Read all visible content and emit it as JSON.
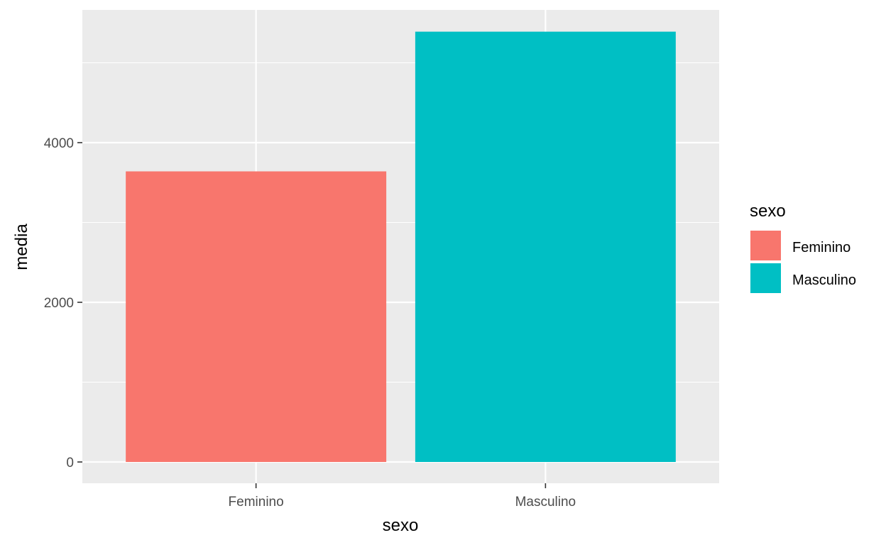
{
  "chart_data": {
    "type": "bar",
    "categories": [
      "Feminino",
      "Masculino"
    ],
    "values": [
      3640,
      5390
    ],
    "xlabel": "sexo",
    "ylabel": "media",
    "ylim": [
      0,
      5660
    ],
    "yticks": [
      0,
      2000,
      4000
    ],
    "yticks_labels": [
      "0",
      "2000",
      "4000"
    ],
    "grid": true,
    "legend": {
      "title": "sexo",
      "position": "right",
      "entries": [
        "Feminino",
        "Masculino"
      ]
    },
    "colors": [
      "#F8766D",
      "#00BFC4"
    ]
  },
  "style": {
    "panel_background": "#EBEBEB",
    "grid_color": "#FFFFFF"
  }
}
